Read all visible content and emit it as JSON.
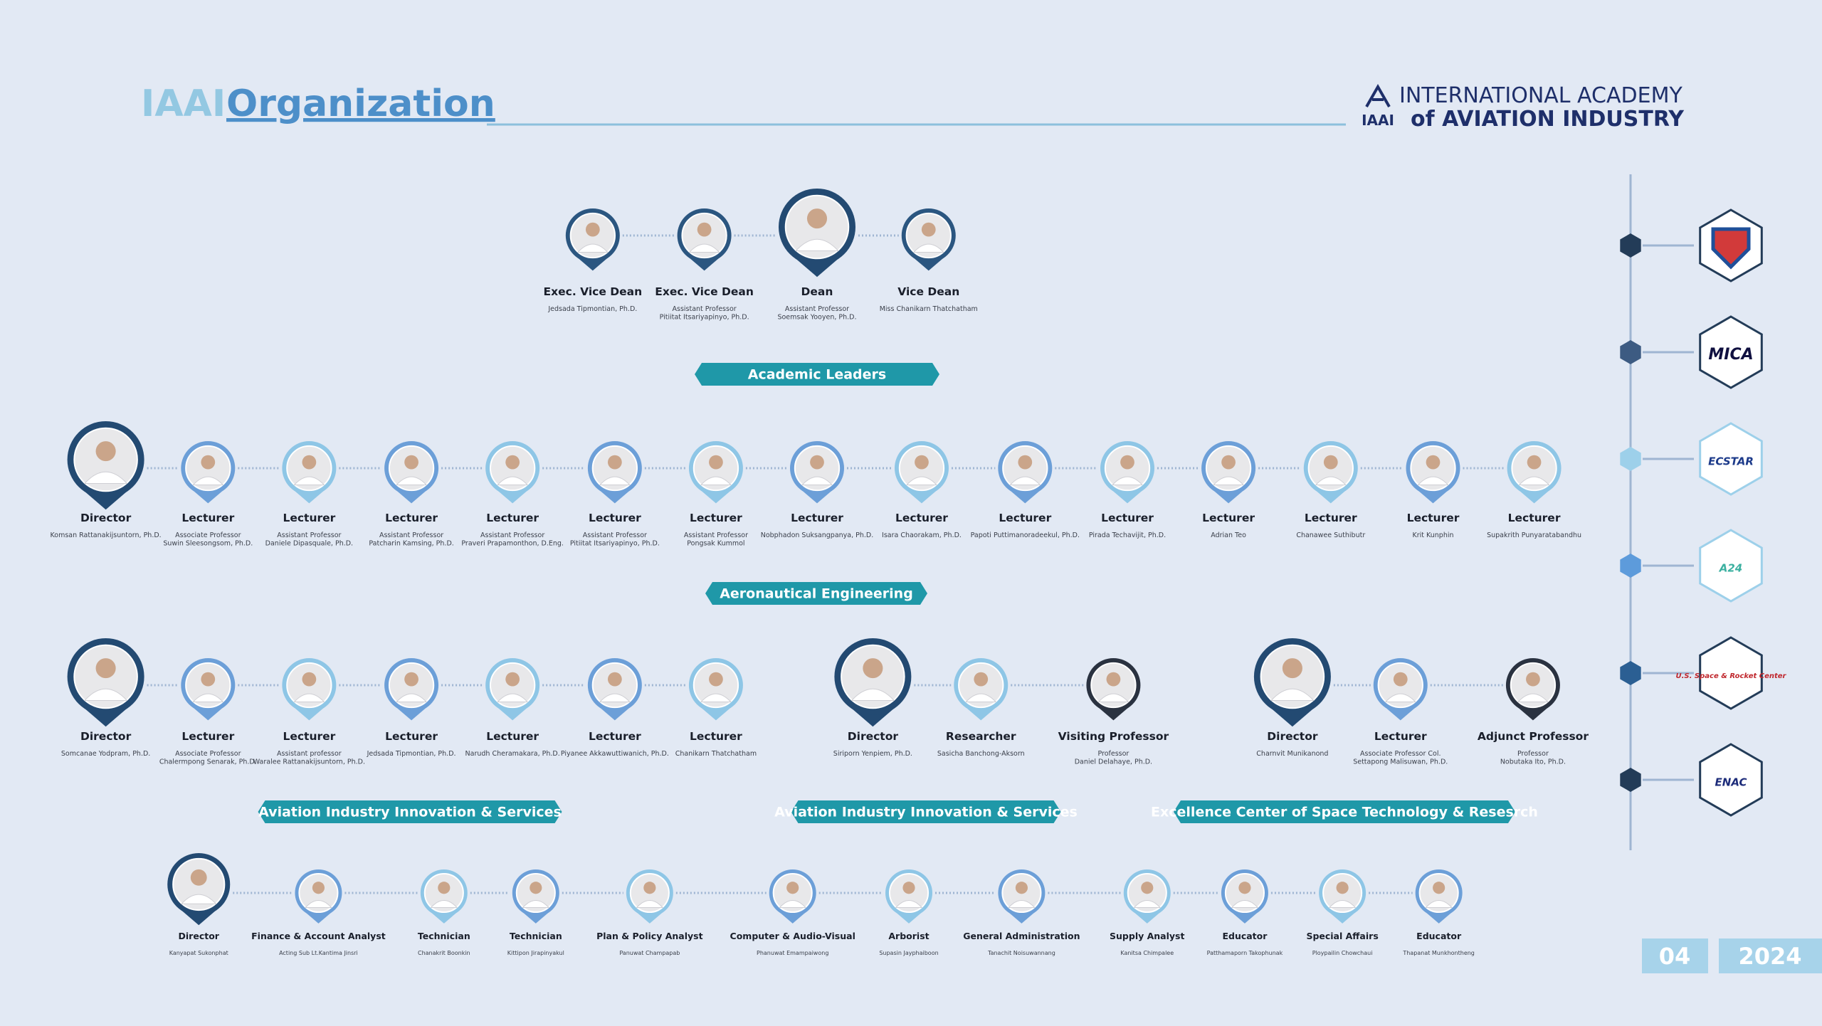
{
  "header": {
    "title_prefix": "IAAI",
    "title": "Organization",
    "logo_mark": "IAAI",
    "logo_line1": "INTERNATIONAL ACADEMY",
    "logo_line2": "of AVIATION INDUSTRY"
  },
  "rows": [
    {
      "people": [
        {
          "role": "Exec. Vice Dean",
          "lines": [
            "Jedsada Tipmontian, Ph.D."
          ]
        },
        {
          "role": "Exec. Vice Dean",
          "lines": [
            "Assistant Professor",
            "Pitiitat Itsariyapinyo, Ph.D."
          ]
        },
        {
          "role": "Dean",
          "lines": [
            "Assistant Professor",
            "Soemsak Yooyen, Ph.D."
          ]
        },
        {
          "role": "Vice Dean",
          "lines": [
            "Miss Chanikarn Thatchatham"
          ]
        }
      ]
    },
    {
      "people": [
        {
          "role": "Director",
          "lines": [
            "Komsan Rattanakijsuntorn, Ph.D."
          ]
        },
        {
          "role": "Lecturer",
          "lines": [
            "Associate Professor",
            "Suwin Sleesongsom, Ph.D."
          ]
        },
        {
          "role": "Lecturer",
          "lines": [
            "Assistant Professor",
            "Daniele Dipasquale, Ph.D."
          ]
        },
        {
          "role": "Lecturer",
          "lines": [
            "Assistant Professor",
            "Patcharin Kamsing, Ph.D."
          ]
        },
        {
          "role": "Lecturer",
          "lines": [
            "Assistant Professor",
            "Praveri Prapamonthon, D.Eng."
          ]
        },
        {
          "role": "Lecturer",
          "lines": [
            "Assistant Professor",
            "Pitiitat Itsariyapinyo, Ph.D."
          ]
        },
        {
          "role": "Lecturer",
          "lines": [
            "Assistant Professor",
            "Pongsak Kummol"
          ]
        },
        {
          "role": "Lecturer",
          "lines": [
            "Nobphadon Suksangpanya, Ph.D."
          ]
        },
        {
          "role": "Lecturer",
          "lines": [
            "Isara Chaorakam, Ph.D."
          ]
        },
        {
          "role": "Lecturer",
          "lines": [
            "Papoti Puttimanoradeekul, Ph.D."
          ]
        },
        {
          "role": "Lecturer",
          "lines": [
            "Pirada Techavijit, Ph.D."
          ]
        },
        {
          "role": "Lecturer",
          "lines": [
            "Adrian Teo"
          ]
        },
        {
          "role": "Lecturer",
          "lines": [
            "Chanawee Suthibutr"
          ]
        },
        {
          "role": "Lecturer",
          "lines": [
            "Krit Kunphin"
          ]
        },
        {
          "role": "Lecturer",
          "lines": [
            "Supakrith Punyaratabandhu"
          ]
        }
      ]
    },
    {
      "people": [
        {
          "role": "Director",
          "lines": [
            "Somcanae Yodpram, Ph.D."
          ]
        },
        {
          "role": "Lecturer",
          "lines": [
            "Associate Professor",
            "Chalermpong Senarak, Ph.D."
          ]
        },
        {
          "role": "Lecturer",
          "lines": [
            "Assistant professor",
            "Waralee Rattanakijsuntorn, Ph.D."
          ]
        },
        {
          "role": "Lecturer",
          "lines": [
            "Jedsada Tipmontian, Ph.D."
          ]
        },
        {
          "role": "Lecturer",
          "lines": [
            "Narudh Cheramakara, Ph.D."
          ]
        },
        {
          "role": "Lecturer",
          "lines": [
            "Piyanee Akkawuttiwanich, Ph.D."
          ]
        },
        {
          "role": "Lecturer",
          "lines": [
            "Chanikarn Thatchatham"
          ]
        },
        {
          "role": "Director",
          "lines": [
            "Siriporn Yenpiem, Ph.D."
          ]
        },
        {
          "role": "Researcher",
          "lines": [
            "Sasicha Banchong-Aksorn"
          ]
        },
        {
          "role": "Visiting Professor",
          "lines": [
            "Professor",
            "Daniel Delahaye, Ph.D."
          ]
        },
        {
          "role": "Director",
          "lines": [
            "Charnvit Munikanond"
          ]
        },
        {
          "role": "Lecturer",
          "lines": [
            "Associate Professor Col.",
            "Settapong Malisuwan, Ph.D."
          ]
        },
        {
          "role": "Adjunct Professor",
          "lines": [
            "Professor",
            "Nobutaka Ito, Ph.D."
          ]
        }
      ]
    },
    {
      "people": [
        {
          "role": "Director",
          "lines": [
            "Kanyapat Sukonphat"
          ]
        },
        {
          "role": "Finance & Account Analyst",
          "lines": [
            "Acting Sub Lt.Kantima Jinsri"
          ]
        },
        {
          "role": "Technician",
          "lines": [
            "Chanakrit Boonkin"
          ]
        },
        {
          "role": "Technician",
          "lines": [
            "Kittipon Jirapinyakul"
          ]
        },
        {
          "role": "Plan & Policy Analyst",
          "lines": [
            "Panuwat Champapab"
          ]
        },
        {
          "role": "Computer & Audio-Visual",
          "lines": [
            "Phanuwat Emampaiwong"
          ]
        },
        {
          "role": "Arborist",
          "lines": [
            "Supasin Jayphaiboon"
          ]
        },
        {
          "role": "General Administration",
          "lines": [
            "Tanachit Noisuwannang"
          ]
        },
        {
          "role": "Supply Analyst",
          "lines": [
            "Kanitsa Chimpalee"
          ]
        },
        {
          "role": "Educator",
          "lines": [
            "Patthamaporn Takophunak"
          ]
        },
        {
          "role": "Special Affairs",
          "lines": [
            "Ploypailin Chowchaui"
          ]
        },
        {
          "role": "Educator",
          "lines": [
            "Thapanat Munkhontheng"
          ]
        }
      ]
    }
  ],
  "sections": [
    "Academic Leaders",
    "Aeronautical Engineering",
    "Aviation Industry Innovation & Services",
    "Aviation Industry Innovation & Services",
    "Excellence Center of Space Technology & Resesrch"
  ],
  "partners": [
    "MICA",
    "ECSTAR",
    "A24",
    "U.S. Space & Rocket Center",
    "ENAC"
  ],
  "footer": {
    "page": "04",
    "year": "2024"
  }
}
